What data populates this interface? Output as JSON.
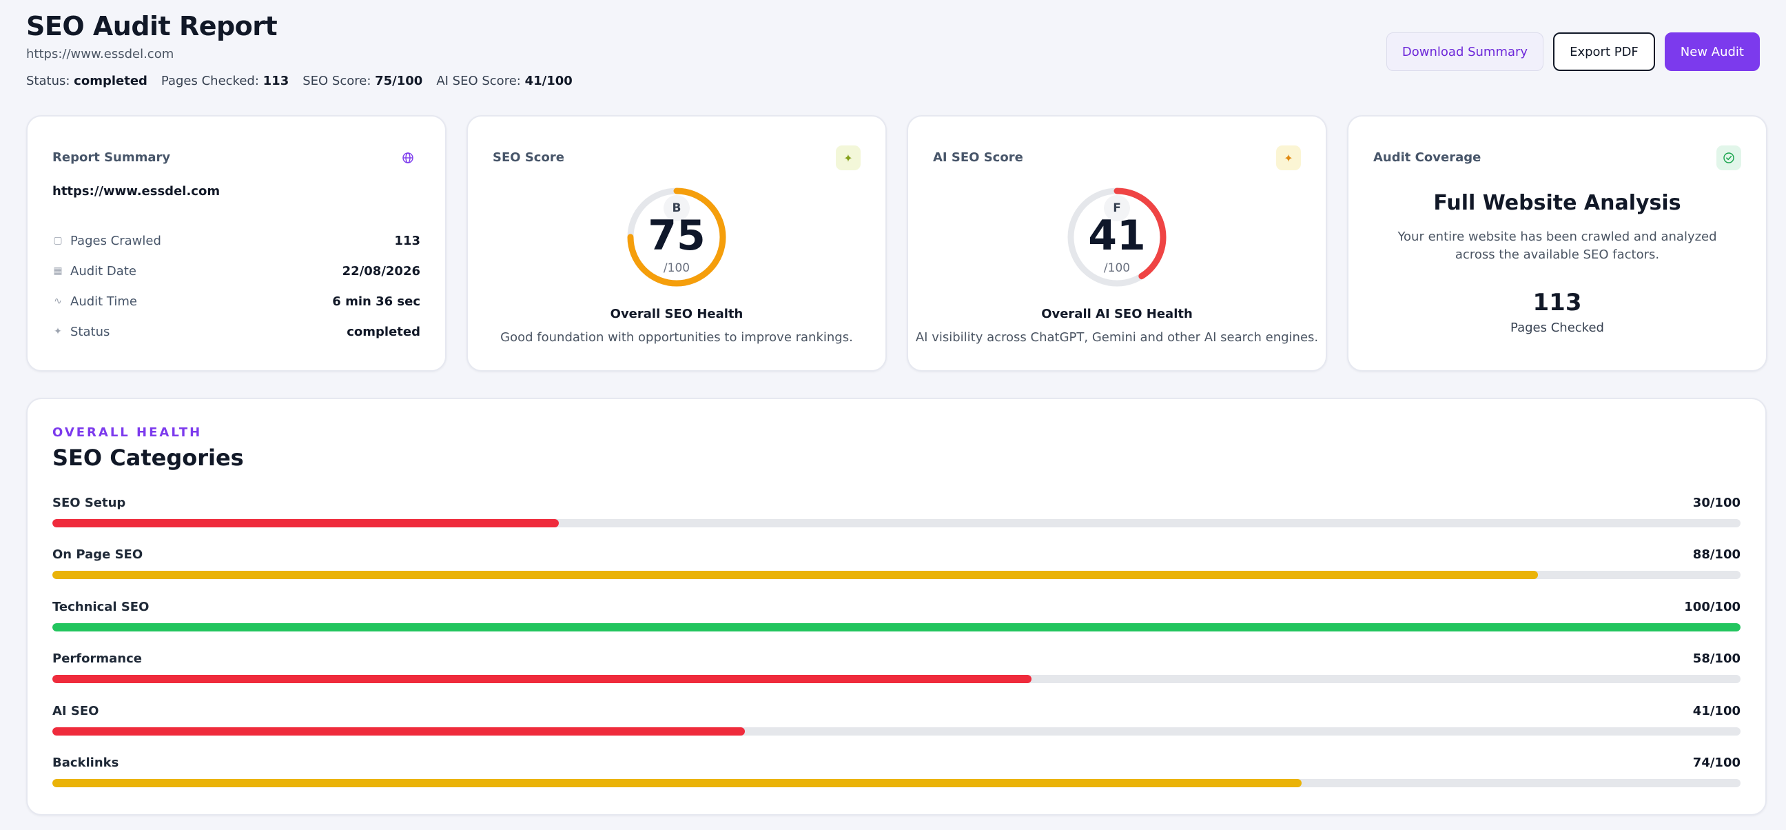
{
  "header": {
    "title": "SEO Audit Report",
    "url": "https://www.essdel.com",
    "meta": [
      {
        "label": "Status:",
        "value": "completed"
      },
      {
        "label": "Pages Checked:",
        "value": "113"
      },
      {
        "label": "SEO Score:",
        "value": "75/100"
      },
      {
        "label": "AI SEO Score:",
        "value": "41/100"
      }
    ],
    "buttons": {
      "download": "Download Summary",
      "export": "Export PDF",
      "new_audit": "New Audit"
    }
  },
  "report_summary": {
    "title": "Report Summary",
    "icon": "globe-icon",
    "url": "https://www.essdel.com",
    "rows": [
      {
        "icon": "file-icon",
        "label": "Pages Crawled",
        "value": "113"
      },
      {
        "icon": "calendar-icon",
        "label": "Audit Date",
        "value": "22/08/2026"
      },
      {
        "icon": "activity-icon",
        "label": "Audit Time",
        "value": "6 min 36 sec"
      },
      {
        "icon": "sparkle-icon",
        "label": "Status",
        "value": "completed"
      }
    ]
  },
  "seo_score": {
    "title": "SEO Score",
    "icon": "sparkle-icon",
    "grade": "B",
    "score": "75",
    "score_value": 75,
    "denominator": "/100",
    "color": "#f59e0b",
    "health_title": "Overall SEO Health",
    "health_desc": "Good foundation with opportunities to improve rankings."
  },
  "ai_seo_score": {
    "title": "AI SEO Score",
    "icon": "sparkle-icon",
    "grade": "F",
    "score": "41",
    "score_value": 41,
    "denominator": "/100",
    "color": "#ef4444",
    "health_title": "Overall AI SEO Health",
    "health_desc": "AI visibility across ChatGPT, Gemini and other AI search engines."
  },
  "audit_coverage": {
    "title": "Audit Coverage",
    "icon": "check-circle-icon",
    "heading": "Full Website Analysis",
    "description": "Your entire website has been crawled and analyzed across the available SEO factors.",
    "count": "113",
    "count_label": "Pages Checked"
  },
  "categories": {
    "eyebrow": "OVERALL HEALTH",
    "title": "SEO Categories",
    "items": [
      {
        "name": "SEO Setup",
        "score": "30/100",
        "value": 30,
        "color": "#ef2b3c"
      },
      {
        "name": "On Page SEO",
        "score": "88/100",
        "value": 88,
        "color": "#eab308"
      },
      {
        "name": "Technical SEO",
        "score": "100/100",
        "value": 100,
        "color": "#22c55e"
      },
      {
        "name": "Performance",
        "score": "58/100",
        "value": 58,
        "color": "#ef2b3c"
      },
      {
        "name": "AI SEO",
        "score": "41/100",
        "value": 41,
        "color": "#ef2b3c"
      },
      {
        "name": "Backlinks",
        "score": "74/100",
        "value": 74,
        "color": "#eab308"
      }
    ]
  }
}
